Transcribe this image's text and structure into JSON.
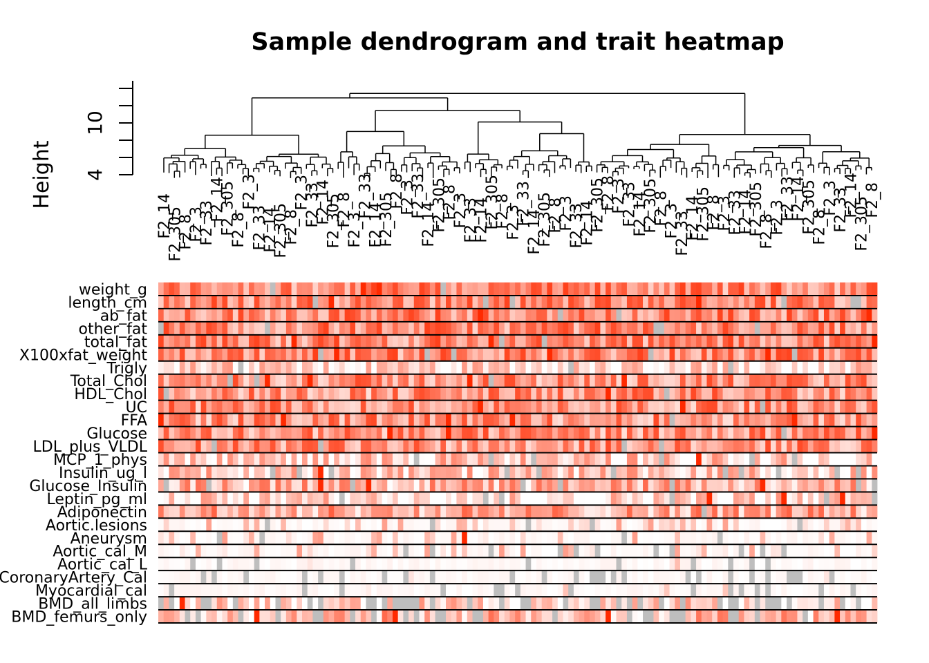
{
  "chart_data": {
    "type": "heatmap",
    "title": "Sample dendrogram and trait heatmap",
    "dendrogram": {
      "ylabel": "Height",
      "yticks": [
        4,
        10
      ],
      "ylim": [
        4,
        14
      ],
      "leaf_labels_partial": [
        "F2_14",
        "F2_3",
        "F2_305",
        "F2_33",
        "F2_8"
      ]
    },
    "traits": [
      "weight_g",
      "length_cm",
      "ab_fat",
      "other_fat",
      "total_fat",
      "X100xfat_weight",
      "Trigly",
      "Total_Chol",
      "HDL_Chol",
      "UC",
      "FFA",
      "Glucose",
      "LDL_plus_VLDL",
      "MCP_1_phys",
      "Insulin_ug_l",
      "Glucose_Insulin",
      "Leptin_pg_ml",
      "Adiponectin",
      "Aortic.lesions",
      "Aneurysm",
      "Aortic_cal_M",
      "Aortic_cal_L",
      "CoronaryArtery_Cal",
      "Myocardial_cal",
      "BMD_all_limbs",
      "BMD_femurs_only"
    ],
    "n_samples": 135,
    "color_scale": {
      "low": "#ffffff",
      "high": "#ff2a00",
      "missing": "#bebebe"
    },
    "grid": false,
    "legend": "none"
  }
}
